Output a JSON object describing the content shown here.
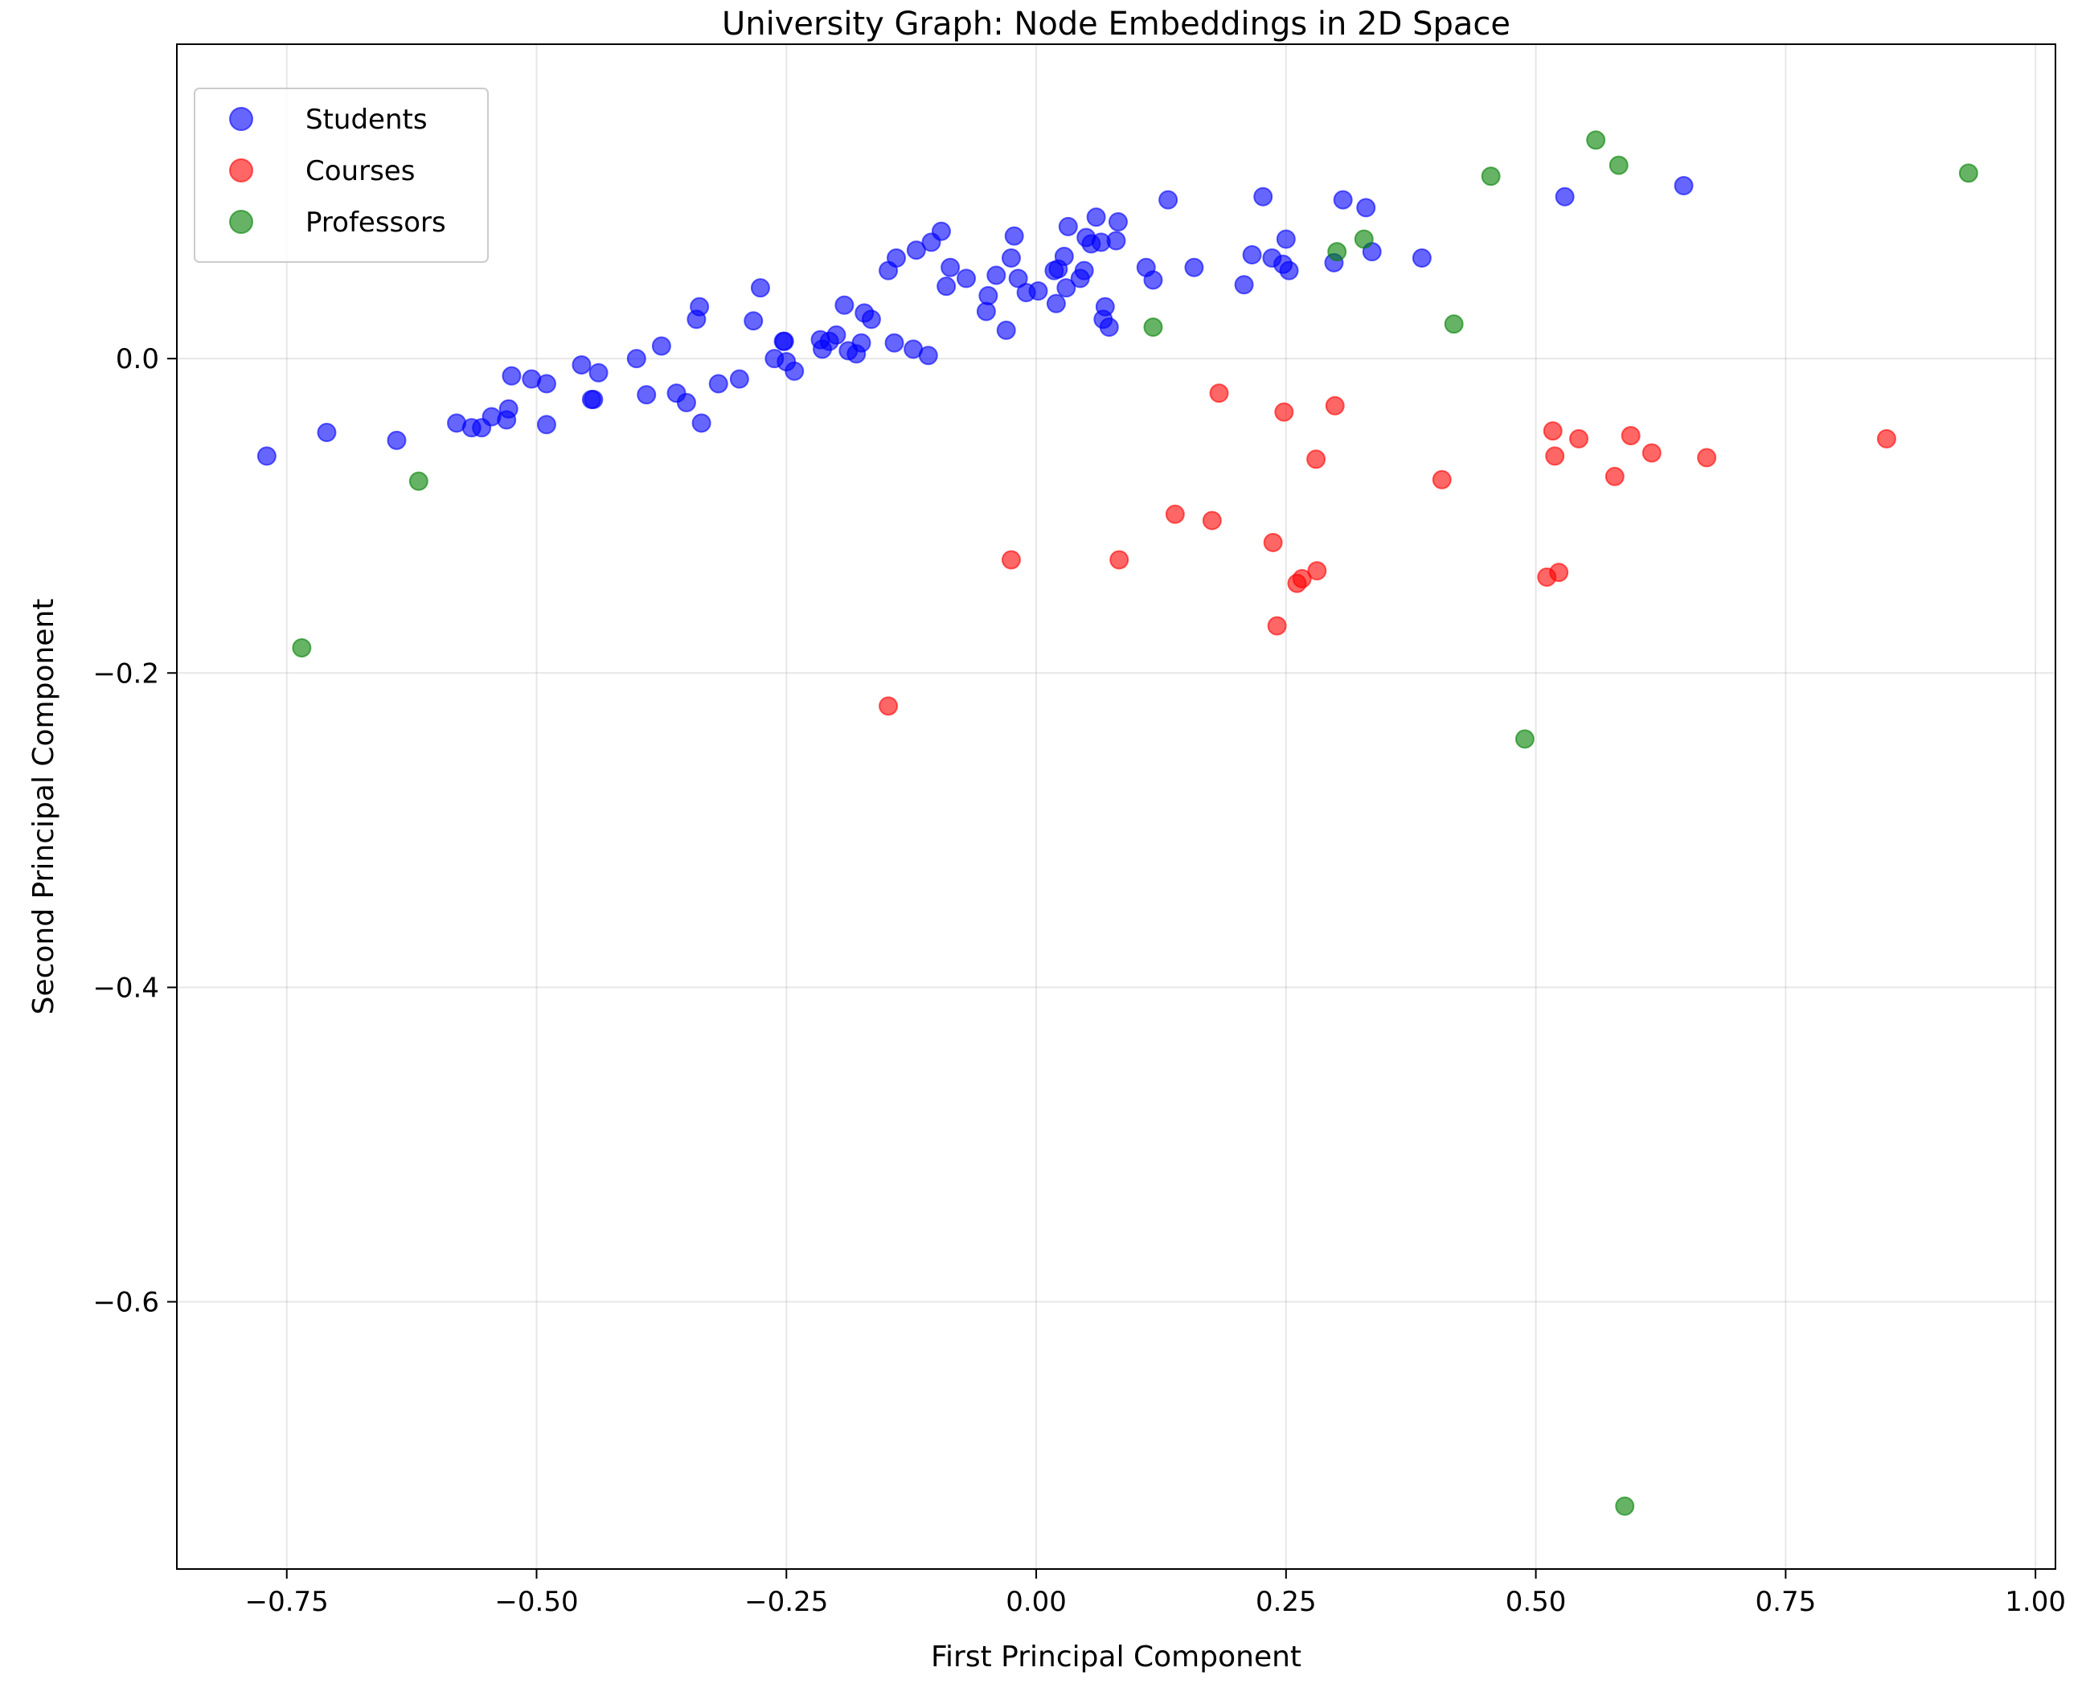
{
  "chart_data": {
    "type": "scatter",
    "title": "University Graph: Node Embeddings in 2D Space",
    "xlabel": "First Principal Component",
    "ylabel": "Second Principal Component",
    "xlim": [
      -0.86,
      1.02
    ],
    "ylim": [
      -0.77,
      0.2
    ],
    "xticks": [
      -0.75,
      -0.5,
      -0.25,
      0.0,
      0.25,
      0.5,
      0.75,
      1.0
    ],
    "xtick_labels": [
      "−0.75",
      "−0.50",
      "−0.25",
      "0.00",
      "0.25",
      "0.50",
      "0.75",
      "1.00"
    ],
    "yticks": [
      0.0,
      -0.2,
      -0.4,
      -0.6
    ],
    "ytick_labels": [
      "0.0",
      "−0.2",
      "−0.4",
      "−0.6"
    ],
    "grid": true,
    "legend_position": "upper-left",
    "series": [
      {
        "name": "Students",
        "color": "#0000ff",
        "points": [
          [
            -0.77,
            -0.062
          ],
          [
            -0.71,
            -0.047
          ],
          [
            -0.64,
            -0.052
          ],
          [
            -0.58,
            -0.041
          ],
          [
            -0.565,
            -0.044
          ],
          [
            -0.555,
            -0.044
          ],
          [
            -0.545,
            -0.037
          ],
          [
            -0.53,
            -0.039
          ],
          [
            -0.528,
            -0.032
          ],
          [
            -0.525,
            -0.011
          ],
          [
            -0.505,
            -0.013
          ],
          [
            -0.49,
            -0.016
          ],
          [
            -0.49,
            -0.042
          ],
          [
            -0.455,
            -0.004
          ],
          [
            -0.445,
            -0.026
          ],
          [
            -0.443,
            -0.026
          ],
          [
            -0.438,
            -0.009
          ],
          [
            -0.4,
            0.0
          ],
          [
            -0.39,
            -0.023
          ],
          [
            -0.375,
            0.008
          ],
          [
            -0.36,
            -0.022
          ],
          [
            -0.35,
            -0.028
          ],
          [
            -0.34,
            0.025
          ],
          [
            -0.337,
            0.033
          ],
          [
            -0.335,
            -0.041
          ],
          [
            -0.318,
            -0.016
          ],
          [
            -0.297,
            -0.013
          ],
          [
            -0.283,
            0.024
          ],
          [
            -0.276,
            0.045
          ],
          [
            -0.262,
            0.0
          ],
          [
            -0.253,
            0.011
          ],
          [
            -0.252,
            0.011
          ],
          [
            -0.25,
            -0.002
          ],
          [
            -0.242,
            -0.008
          ],
          [
            -0.216,
            0.012
          ],
          [
            -0.214,
            0.006
          ],
          [
            -0.207,
            0.011
          ],
          [
            -0.2,
            0.015
          ],
          [
            -0.192,
            0.034
          ],
          [
            -0.188,
            0.005
          ],
          [
            -0.18,
            0.003
          ],
          [
            -0.175,
            0.01
          ],
          [
            -0.172,
            0.029
          ],
          [
            -0.165,
            0.025
          ],
          [
            -0.148,
            0.056
          ],
          [
            -0.142,
            0.01
          ],
          [
            -0.14,
            0.064
          ],
          [
            -0.123,
            0.006
          ],
          [
            -0.12,
            0.069
          ],
          [
            -0.108,
            0.002
          ],
          [
            -0.105,
            0.074
          ],
          [
            -0.095,
            0.081
          ],
          [
            -0.09,
            0.046
          ],
          [
            -0.086,
            0.058
          ],
          [
            -0.07,
            0.051
          ],
          [
            -0.05,
            0.03
          ],
          [
            -0.048,
            0.04
          ],
          [
            -0.04,
            0.053
          ],
          [
            -0.03,
            0.018
          ],
          [
            -0.025,
            0.064
          ],
          [
            -0.022,
            0.078
          ],
          [
            -0.018,
            0.051
          ],
          [
            -0.01,
            0.042
          ],
          [
            0.002,
            0.043
          ],
          [
            0.018,
            0.056
          ],
          [
            0.02,
            0.035
          ],
          [
            0.022,
            0.057
          ],
          [
            0.028,
            0.065
          ],
          [
            0.03,
            0.045
          ],
          [
            0.032,
            0.084
          ],
          [
            0.044,
            0.051
          ],
          [
            0.048,
            0.056
          ],
          [
            0.05,
            0.077
          ],
          [
            0.055,
            0.073
          ],
          [
            0.06,
            0.09
          ],
          [
            0.065,
            0.074
          ],
          [
            0.067,
            0.025
          ],
          [
            0.069,
            0.033
          ],
          [
            0.073,
            0.02
          ],
          [
            0.08,
            0.075
          ],
          [
            0.082,
            0.087
          ],
          [
            0.11,
            0.058
          ],
          [
            0.117,
            0.05
          ],
          [
            0.132,
            0.101
          ],
          [
            0.158,
            0.058
          ],
          [
            0.208,
            0.047
          ],
          [
            0.216,
            0.066
          ],
          [
            0.227,
            0.103
          ],
          [
            0.236,
            0.064
          ],
          [
            0.247,
            0.06
          ],
          [
            0.25,
            0.076
          ],
          [
            0.253,
            0.056
          ],
          [
            0.298,
            0.061
          ],
          [
            0.307,
            0.101
          ],
          [
            0.33,
            0.096
          ],
          [
            0.336,
            0.068
          ],
          [
            0.386,
            0.064
          ],
          [
            0.529,
            0.103
          ],
          [
            0.648,
            0.11
          ]
        ]
      },
      {
        "name": "Courses",
        "color": "#ff0000",
        "points": [
          [
            -0.148,
            -0.221
          ],
          [
            -0.025,
            -0.128
          ],
          [
            0.083,
            -0.128
          ],
          [
            0.139,
            -0.099
          ],
          [
            0.176,
            -0.103
          ],
          [
            0.183,
            -0.022
          ],
          [
            0.237,
            -0.117
          ],
          [
            0.241,
            -0.17
          ],
          [
            0.248,
            -0.034
          ],
          [
            0.261,
            -0.143
          ],
          [
            0.266,
            -0.14
          ],
          [
            0.28,
            -0.064
          ],
          [
            0.281,
            -0.135
          ],
          [
            0.299,
            -0.03
          ],
          [
            0.406,
            -0.077
          ],
          [
            0.511,
            -0.139
          ],
          [
            0.517,
            -0.046
          ],
          [
            0.519,
            -0.062
          ],
          [
            0.523,
            -0.136
          ],
          [
            0.543,
            -0.051
          ],
          [
            0.579,
            -0.075
          ],
          [
            0.595,
            -0.049
          ],
          [
            0.616,
            -0.06
          ],
          [
            0.671,
            -0.063
          ],
          [
            0.851,
            -0.051
          ]
        ]
      },
      {
        "name": "Professors",
        "color": "#008000",
        "points": [
          [
            -0.735,
            -0.184
          ],
          [
            -0.618,
            -0.078
          ],
          [
            0.117,
            0.02
          ],
          [
            0.301,
            0.068
          ],
          [
            0.328,
            0.076
          ],
          [
            0.418,
            0.022
          ],
          [
            0.455,
            0.116
          ],
          [
            0.489,
            -0.242
          ],
          [
            0.56,
            0.139
          ],
          [
            0.583,
            0.123
          ],
          [
            0.589,
            -0.73
          ],
          [
            0.933,
            0.118
          ]
        ]
      }
    ]
  }
}
